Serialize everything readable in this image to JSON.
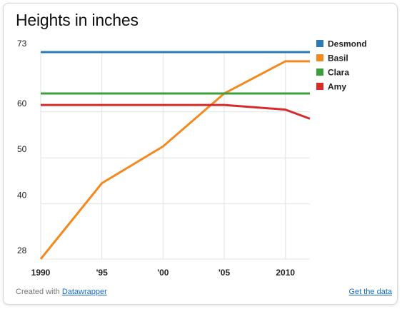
{
  "chart_data": {
    "type": "line",
    "title": "Heights in inches",
    "xlabel": "",
    "ylabel": "",
    "x": [
      1990,
      1995,
      2000,
      2005,
      2010,
      2012
    ],
    "x_ticks": [
      1990,
      1995,
      2000,
      2005,
      2010
    ],
    "x_tick_labels": [
      "1990",
      "'95",
      "'00",
      "'05",
      "2010"
    ],
    "xlim": [
      1990,
      2012
    ],
    "ylim": [
      28,
      73
    ],
    "y_ticks": [
      28,
      40,
      50,
      60,
      73
    ],
    "y_tick_labels": [
      "28",
      "40",
      "50",
      "60",
      "73"
    ],
    "grid": "vertical",
    "legend_position": "right",
    "series": [
      {
        "name": "Desmond",
        "color": "#2a7ab8",
        "values": [
          73,
          73,
          73,
          73,
          73,
          73
        ]
      },
      {
        "name": "Basil",
        "color": "#f4891f",
        "values": [
          28,
          44.5,
          52.5,
          64,
          71,
          71
        ]
      },
      {
        "name": "Clara",
        "color": "#3aa13a",
        "values": [
          64,
          64,
          64,
          64,
          64,
          64
        ]
      },
      {
        "name": "Amy",
        "color": "#d62b2b",
        "values": [
          61.5,
          61.5,
          61.5,
          61.5,
          60.5,
          58.5
        ]
      }
    ]
  },
  "footer": {
    "credit_prefix": "Created with ",
    "credit_link": "Datawrapper",
    "data_link": "Get the data"
  }
}
